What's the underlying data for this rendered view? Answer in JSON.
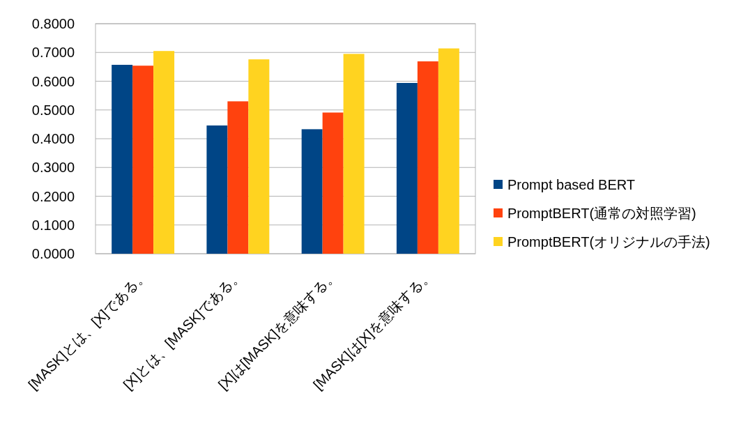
{
  "chart_data": {
    "type": "bar",
    "categories": [
      "[MASK]とは、[X]である。",
      "[X]とは、[MASK]である。",
      "[X]は[MASK]を意味する。",
      "[MASK]は[X]を意味する。"
    ],
    "series": [
      {
        "name": "Prompt based BERT",
        "color": "#004586",
        "values": [
          0.657,
          0.446,
          0.433,
          0.594
        ]
      },
      {
        "name": "PromptBERT(通常の対照学習)",
        "color": "#ff420e",
        "values": [
          0.654,
          0.53,
          0.491,
          0.669
        ]
      },
      {
        "name": "PromptBERT(オリジナルの手法)",
        "color": "#ffd320",
        "values": [
          0.705,
          0.676,
          0.695,
          0.714
        ]
      }
    ],
    "ylim": [
      0,
      0.8
    ],
    "yticks": [
      {
        "value": 0,
        "label": "0.0000"
      },
      {
        "value": 0.1,
        "label": "0.1000"
      },
      {
        "value": 0.2,
        "label": "0.2000"
      },
      {
        "value": 0.3,
        "label": "0.3000"
      },
      {
        "value": 0.4,
        "label": "0.4000"
      },
      {
        "value": 0.5,
        "label": "0.5000"
      },
      {
        "value": 0.6,
        "label": "0.6000"
      },
      {
        "value": 0.7,
        "label": "0.7000"
      },
      {
        "value": 0.8,
        "label": "0.8000"
      }
    ],
    "grid": "y",
    "legend": "right"
  }
}
